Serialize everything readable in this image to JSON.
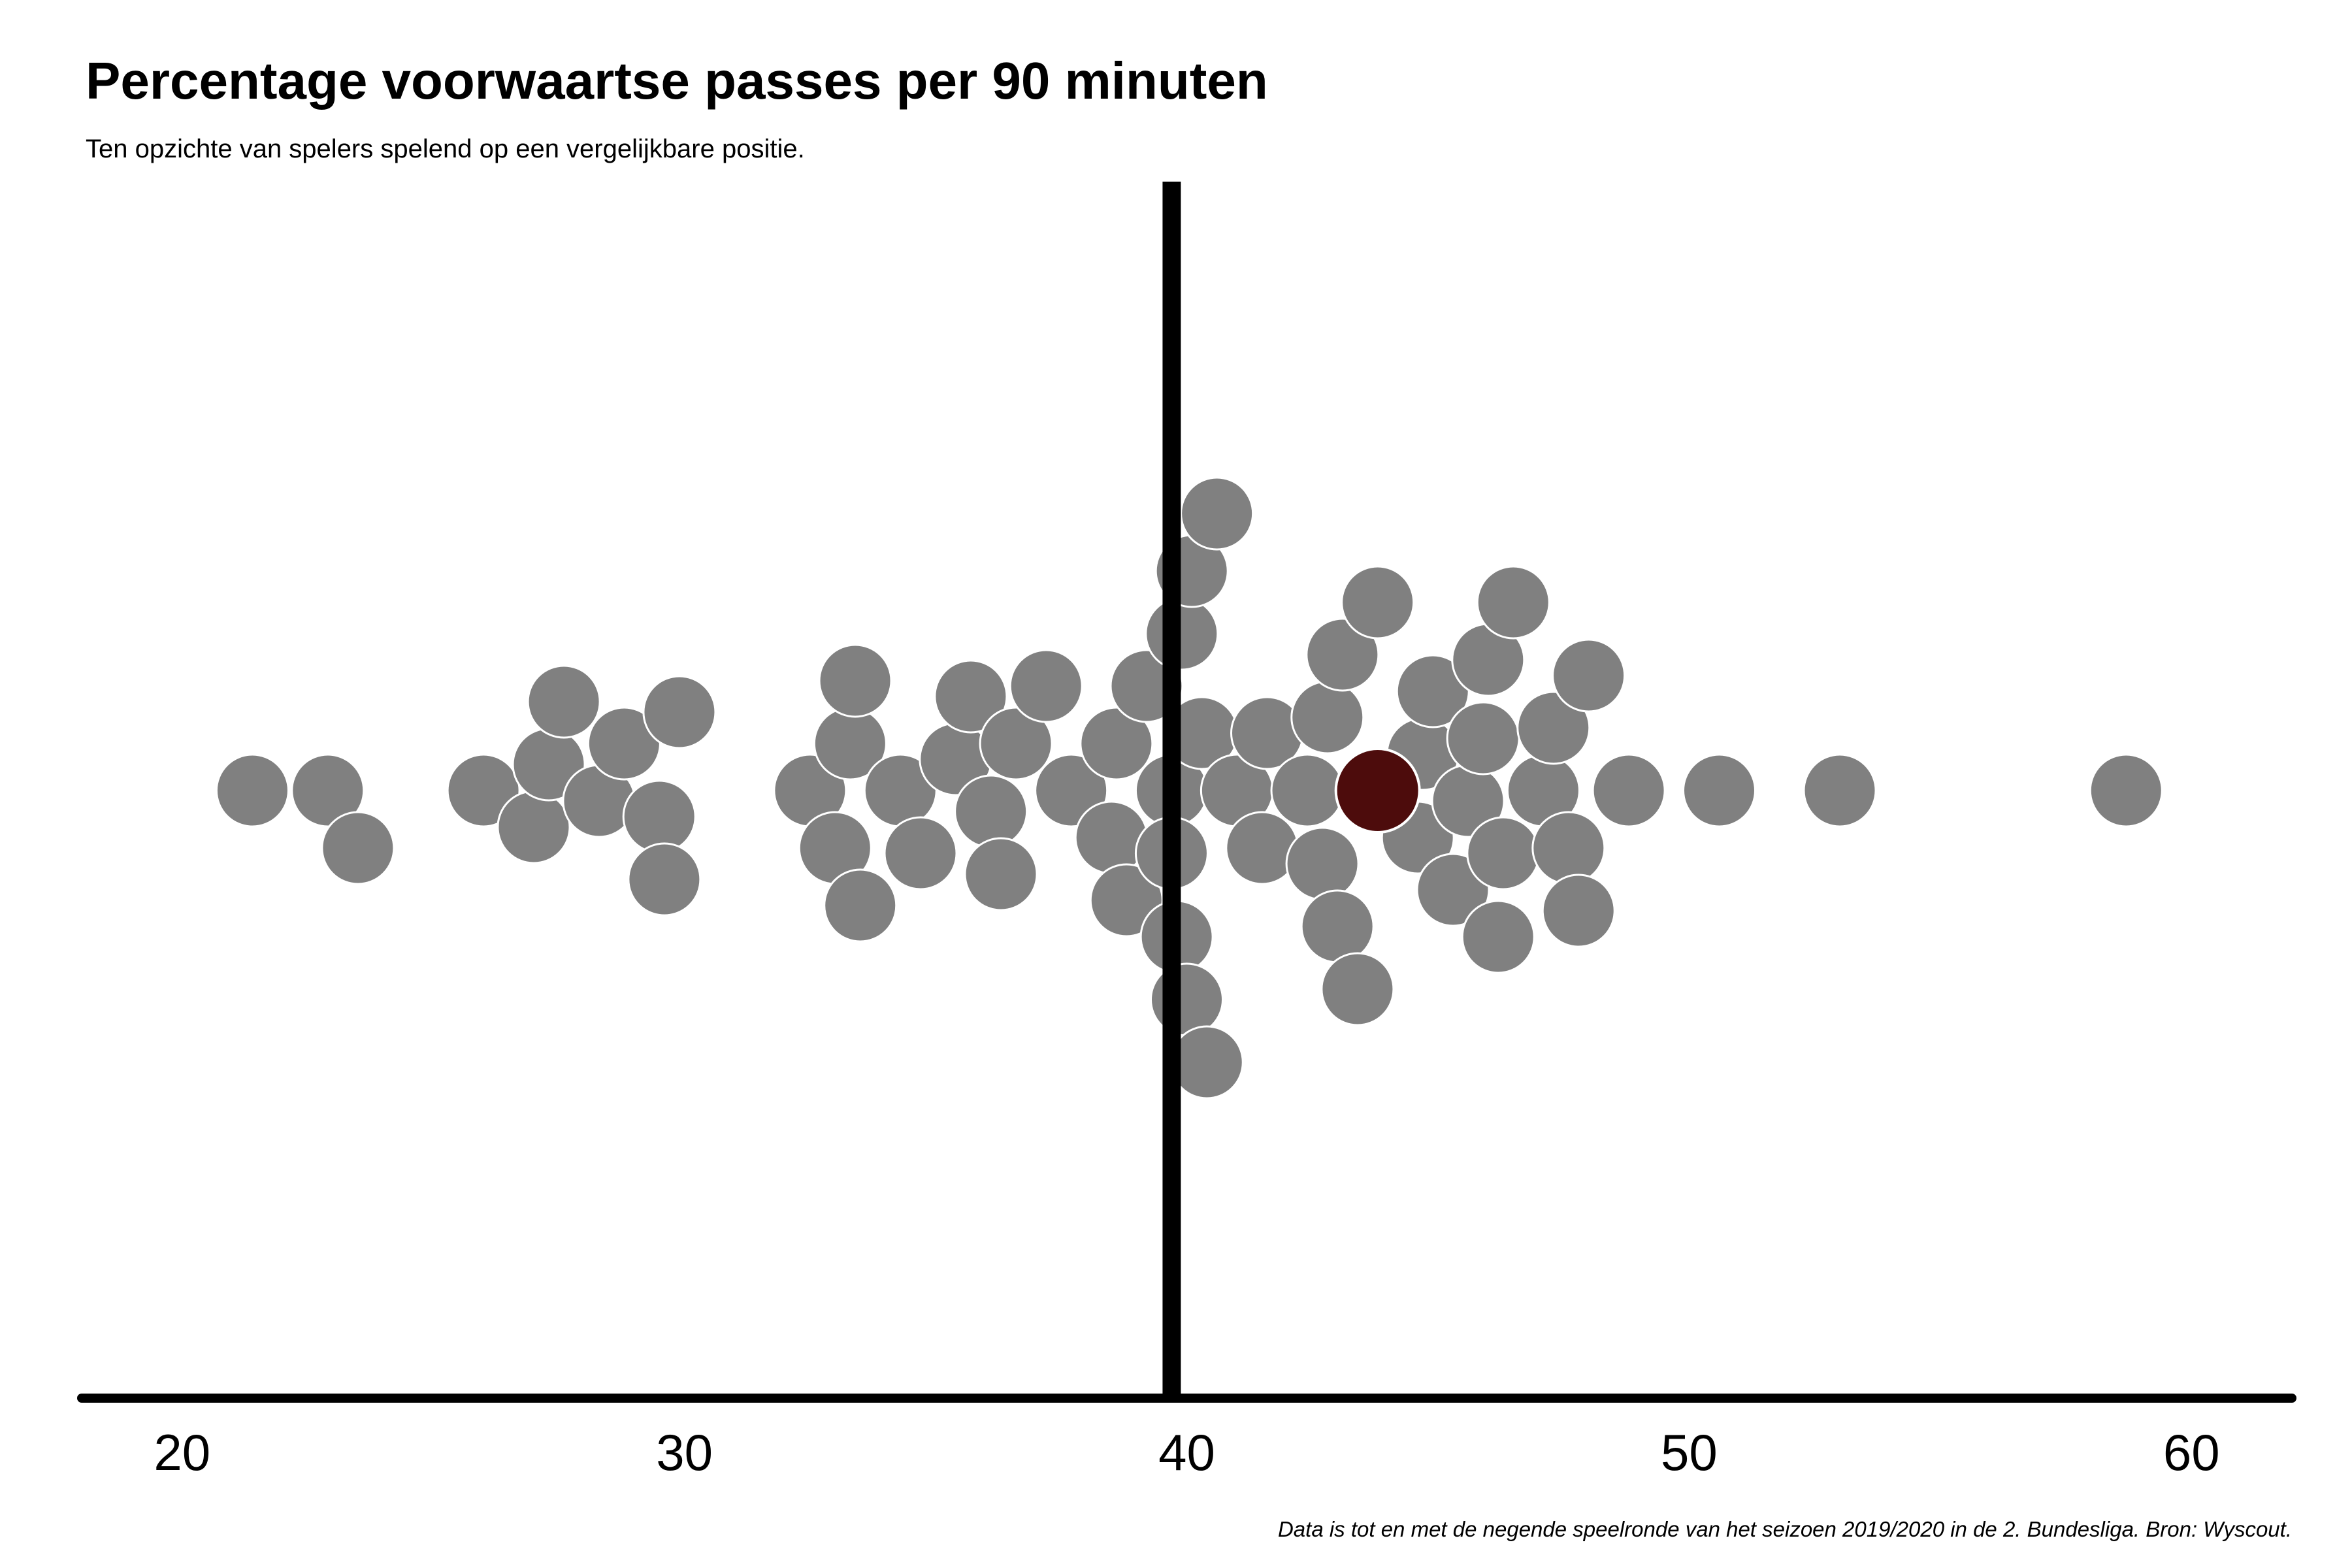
{
  "title": "Percentage voorwaartse passes per 90 minuten",
  "subtitle": "Ten opzichte van spelers spelend op een vergelijkbare positie.",
  "caption": "Data is tot en met de negende speelronde van het seizoen 2019/2020 in de 2. Bundesliga. Bron: Wyscout.",
  "chart_data": {
    "type": "scatter",
    "subtype": "beeswarm",
    "xlim": [
      18,
      62
    ],
    "x_ticks": [
      20,
      30,
      40,
      50,
      60
    ],
    "reference_line_x": 39.7,
    "grid": false,
    "colors": {
      "points": "#808080",
      "highlight": "#4d0c0c",
      "axis": "#000000",
      "reference": "#000000"
    },
    "highlight": {
      "x": 43.8
    },
    "points": [
      21.4,
      22.9,
      23.5,
      26.0,
      27.0,
      27.3,
      27.6,
      28.3,
      28.8,
      29.5,
      29.6,
      29.9,
      32.5,
      33.0,
      33.3,
      33.4,
      33.5,
      34.3,
      34.7,
      35.4,
      35.7,
      36.1,
      36.3,
      36.6,
      37.2,
      37.7,
      38.5,
      38.6,
      38.8,
      39.2,
      39.7,
      39.7,
      39.8,
      39.9,
      40.0,
      40.1,
      40.3,
      40.4,
      40.6,
      41.0,
      41.5,
      41.6,
      42.4,
      42.7,
      42.8,
      43.0,
      43.1,
      43.4,
      43.7,
      43.8,
      44.6,
      44.7,
      44.9,
      45.3,
      45.6,
      45.9,
      46.0,
      46.2,
      46.3,
      46.5,
      47.1,
      47.3,
      47.6,
      47.8,
      48.0,
      48.8,
      50.6,
      53.0,
      58.7
    ]
  }
}
